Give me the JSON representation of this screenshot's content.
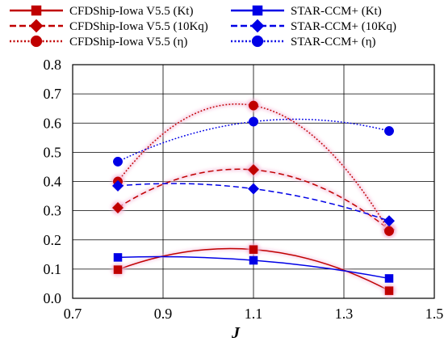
{
  "chart_data": {
    "type": "line",
    "xlabel": "J",
    "ylabel": "",
    "xlim": [
      0.7,
      1.5
    ],
    "ylim": [
      0.0,
      0.8
    ],
    "xticks": [
      0.7,
      0.9,
      1.1,
      1.3,
      1.5
    ],
    "xtick_labels": [
      "0.7",
      "0.9",
      "1.1",
      "1.3",
      "1.5"
    ],
    "yticks": [
      0.0,
      0.1,
      0.2,
      0.3,
      0.4,
      0.5,
      0.6,
      0.7,
      0.8
    ],
    "ytick_labels": [
      "0.0",
      "0.1",
      "0.2",
      "0.3",
      "0.4",
      "0.5",
      "0.6",
      "0.7",
      "0.8"
    ],
    "grid": true,
    "legend_position": "top",
    "x": [
      0.8,
      1.1,
      1.4
    ],
    "series": [
      {
        "name": "CFDShip-Iowa V5.5 (Kt)",
        "values": [
          0.098,
          0.167,
          0.026
        ],
        "color": "#c00000",
        "dash": "solid",
        "marker": "square"
      },
      {
        "name": "CFDShip-Iowa V5.5 (10Kq)",
        "values": [
          0.31,
          0.44,
          0.235
        ],
        "color": "#c00000",
        "dash": "dashed",
        "marker": "diamond"
      },
      {
        "name": "CFDShip-Iowa V5.5 (η)",
        "values": [
          0.4,
          0.66,
          0.23
        ],
        "color": "#c00000",
        "dash": "dotted",
        "marker": "circle"
      },
      {
        "name": "STAR-CCM+ (Kt)",
        "values": [
          0.14,
          0.13,
          0.068
        ],
        "color": "#0000e6",
        "dash": "solid",
        "marker": "square"
      },
      {
        "name": "STAR-CCM+ (10Kq)",
        "values": [
          0.385,
          0.375,
          0.265
        ],
        "color": "#0000e6",
        "dash": "dashed",
        "marker": "diamond"
      },
      {
        "name": "STAR-CCM+ (η)",
        "values": [
          0.468,
          0.605,
          0.573
        ],
        "color": "#0000e6",
        "dash": "dotted",
        "marker": "circle"
      }
    ]
  }
}
